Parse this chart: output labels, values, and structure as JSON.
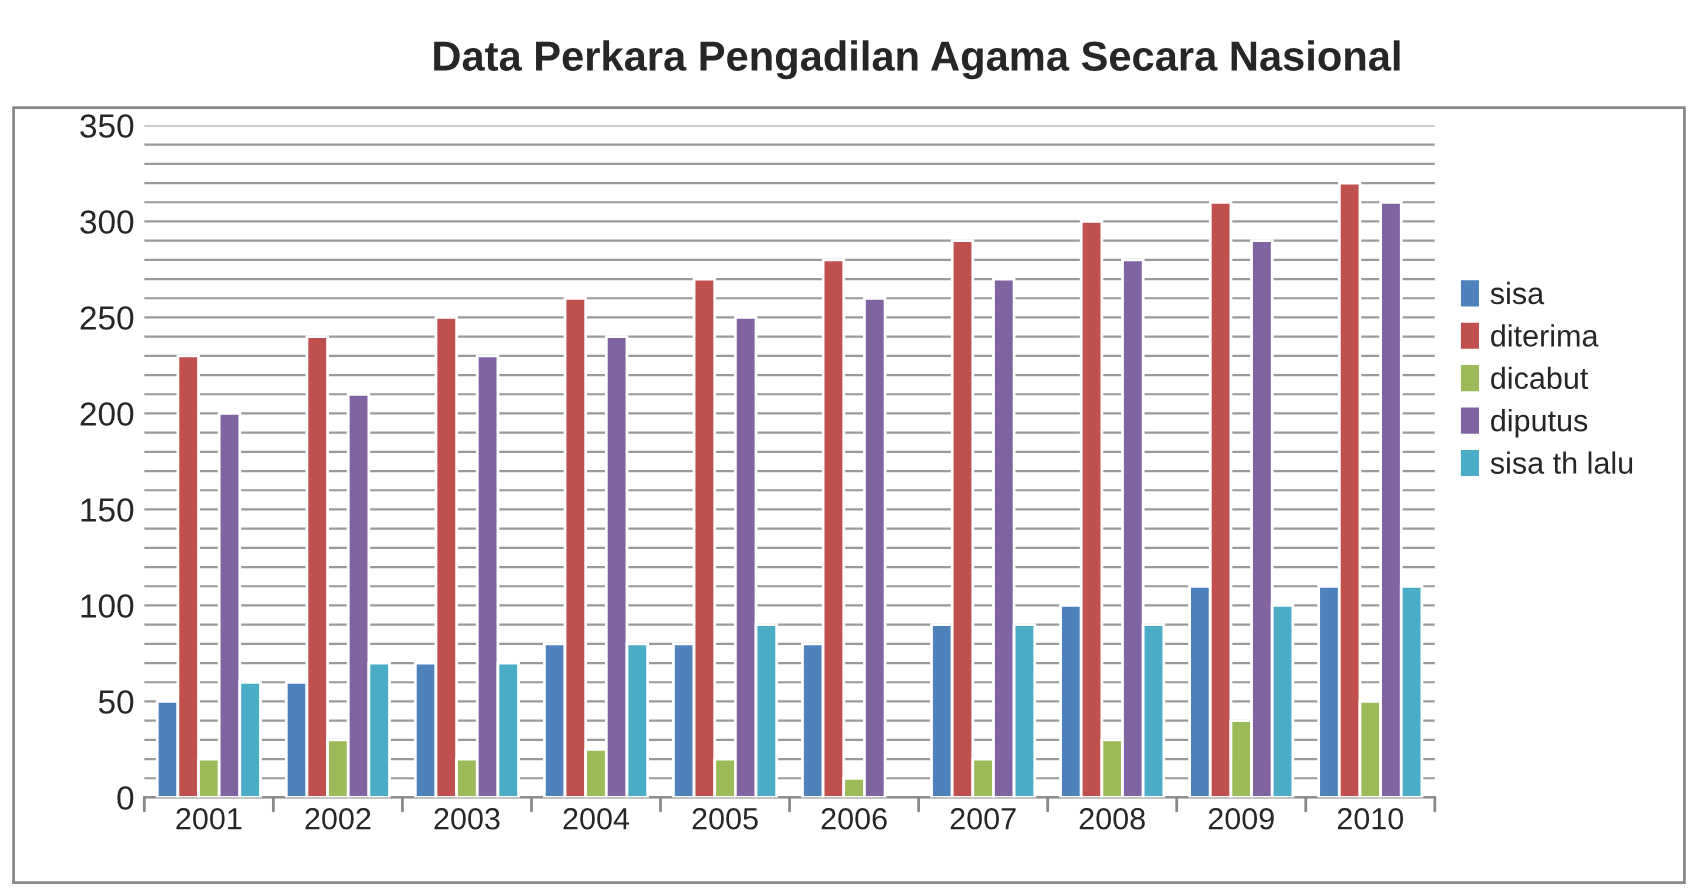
{
  "chart_data": {
    "type": "bar",
    "title": "Data Perkara Pengadilan Agama Secara Nasional",
    "categories": [
      "2001",
      "2002",
      "2003",
      "2004",
      "2005",
      "2006",
      "2007",
      "2008",
      "2009",
      "2010"
    ],
    "series": [
      {
        "name": "sisa",
        "color": "#4f81bd",
        "values": [
          50,
          60,
          70,
          80,
          80,
          80,
          90,
          100,
          110,
          110
        ]
      },
      {
        "name": "diterima",
        "color": "#c0504d",
        "values": [
          230,
          240,
          250,
          260,
          270,
          280,
          290,
          300,
          310,
          320
        ]
      },
      {
        "name": "dicabut",
        "color": "#9bbb59",
        "values": [
          20,
          30,
          20,
          25,
          20,
          10,
          20,
          30,
          40,
          50
        ]
      },
      {
        "name": "diputus",
        "color": "#8064a2",
        "values": [
          200,
          210,
          230,
          240,
          250,
          260,
          270,
          280,
          290,
          310
        ]
      },
      {
        "name": "sisa th lalu",
        "color": "#4bacc6",
        "values": [
          60,
          70,
          70,
          80,
          90,
          null,
          90,
          90,
          100,
          110
        ]
      }
    ],
    "ylim": [
      0,
      350
    ],
    "yticks": [
      0,
      {
        "value": 10,
        "label": null
      },
      {
        "value": 20,
        "label": null
      },
      {
        "value": 30,
        "label": null
      },
      {
        "value": 40,
        "label": null
      },
      50,
      {
        "value": 60,
        "label": null
      },
      {
        "value": 70,
        "label": null
      },
      {
        "value": 80,
        "label": null
      },
      {
        "value": 90,
        "label": null
      },
      100,
      {
        "value": 110,
        "label": null
      },
      {
        "value": 120,
        "label": null
      },
      {
        "value": 130,
        "label": null
      },
      {
        "value": 140,
        "label": null
      },
      150,
      {
        "value": 160,
        "label": null
      },
      {
        "value": 170,
        "label": null
      },
      {
        "value": 180,
        "label": null
      },
      {
        "value": 190,
        "label": null
      },
      200,
      {
        "value": 210,
        "label": null
      },
      {
        "value": 220,
        "label": null
      },
      {
        "value": 230,
        "label": null
      },
      {
        "value": 240,
        "label": null
      },
      250,
      {
        "value": 260,
        "label": null
      },
      {
        "value": 270,
        "label": null
      },
      {
        "value": 280,
        "label": null
      },
      {
        "value": 290,
        "label": null
      },
      300,
      {
        "value": 310,
        "label": null
      },
      {
        "value": 320,
        "label": null
      },
      {
        "value": 330,
        "label": null
      },
      {
        "value": 340,
        "label": null
      },
      350
    ],
    "grid": "y",
    "legend": "right"
  }
}
